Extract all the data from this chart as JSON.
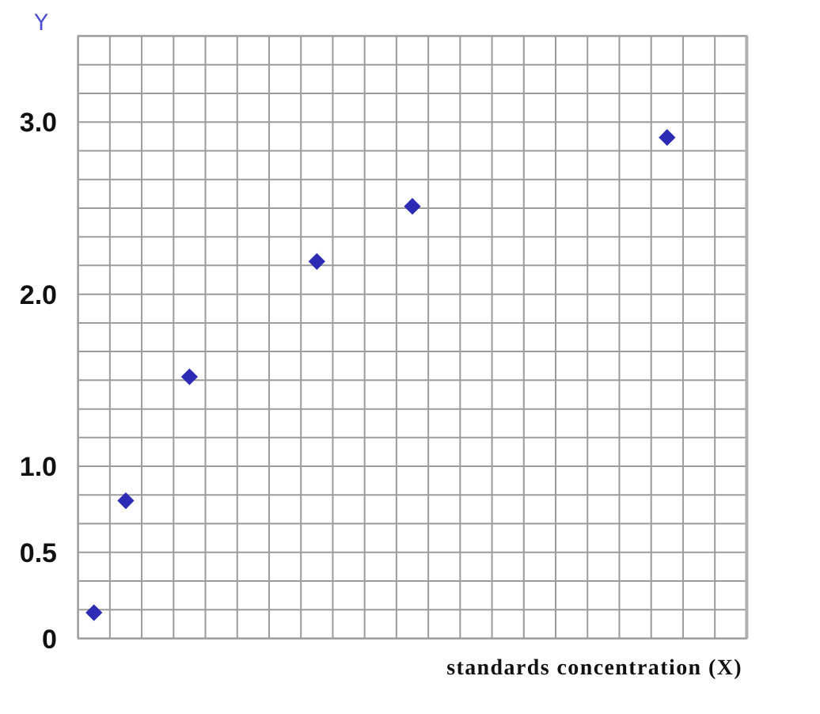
{
  "chart_data": {
    "type": "scatter",
    "ylabel": "Y",
    "xlabel": "standards concentration (X)",
    "categories": [
      null,
      null,
      null,
      null,
      null,
      null,
      null,
      null,
      null,
      null,
      null,
      null,
      null,
      null,
      null,
      null,
      null,
      null,
      null,
      null,
      null
    ],
    "series": [
      {
        "color": "#2b2bb3",
        "values": [
          0.15,
          0.8,
          null,
          1.52,
          null,
          null,
          null,
          2.19,
          null,
          null,
          2.51,
          null,
          null,
          null,
          null,
          null,
          null,
          null,
          2.91,
          null,
          null
        ]
      }
    ],
    "ylim": [
      0,
      3.5
    ],
    "yticks": [
      0,
      {
        "value": 0.1667,
        "label": null
      },
      {
        "value": 0.3333,
        "label": null
      },
      0.5,
      {
        "value": 0.6667,
        "label": null
      },
      {
        "value": 0.8333,
        "label": null
      },
      {
        "value": 1,
        "label": "1.0"
      },
      {
        "value": 1.1667,
        "label": null
      },
      {
        "value": 1.3333,
        "label": null
      },
      {
        "value": 1.5,
        "label": null
      },
      {
        "value": 1.6667,
        "label": null
      },
      {
        "value": 1.8333,
        "label": null
      },
      {
        "value": 2,
        "label": "2.0"
      },
      {
        "value": 2.1667,
        "label": null
      },
      {
        "value": 2.3333,
        "label": null
      },
      {
        "value": 2.5,
        "label": null
      },
      {
        "value": 2.6667,
        "label": null
      },
      {
        "value": 2.8333,
        "label": null
      },
      {
        "value": 3,
        "label": "3.0"
      },
      {
        "value": 3.1667,
        "label": null
      },
      {
        "value": 3.3333,
        "label": null
      },
      {
        "value": 3.5,
        "label": null
      }
    ],
    "grid": true,
    "marker": "diamond",
    "tick_labels": "y"
  }
}
